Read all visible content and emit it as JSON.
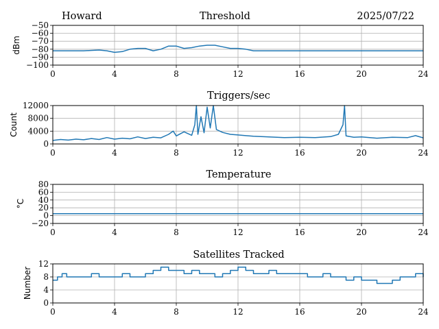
{
  "header": {
    "station": "Howard",
    "date": "2025/07/22"
  },
  "colors": {
    "series": "#1f77b4",
    "grid": "#b0b0b0",
    "axes": "#000000"
  },
  "chart_data": [
    {
      "type": "line",
      "title": "Threshold",
      "ylabel": "dBm",
      "xlim": [
        0,
        24
      ],
      "ylim": [
        -100,
        -50
      ],
      "xticks": [
        0,
        4,
        8,
        12,
        16,
        20,
        24
      ],
      "yticks": [
        -100,
        -90,
        -80,
        -70,
        -60,
        -50
      ],
      "ytick_labels": [
        "−100",
        "−90",
        "−80",
        "−70",
        "−60",
        "−50"
      ],
      "grid": true,
      "series": [
        {
          "x": [
            0,
            1,
            2,
            3,
            3.5,
            4,
            4.5,
            5,
            5.5,
            6,
            6.5,
            7,
            7.5,
            8,
            8.5,
            9,
            9.5,
            10,
            10.5,
            11,
            11.5,
            12,
            12.5,
            13,
            14,
            16,
            18,
            20,
            22,
            24
          ],
          "values": [
            -82,
            -82,
            -82,
            -81,
            -82,
            -84,
            -83,
            -80,
            -79,
            -79,
            -82,
            -80,
            -76,
            -76,
            -79,
            -78,
            -76,
            -75,
            -75,
            -77,
            -79,
            -79,
            -80,
            -82,
            -82,
            -82,
            -82,
            -82,
            -82,
            -82
          ]
        }
      ]
    },
    {
      "type": "line",
      "title": "Triggers/sec",
      "ylabel": "Count",
      "xlim": [
        0,
        24
      ],
      "ylim": [
        0,
        12000
      ],
      "xticks": [
        0,
        4,
        8,
        12,
        16,
        20,
        24
      ],
      "yticks": [
        0,
        4000,
        8000,
        12000
      ],
      "ytick_labels": [
        "0",
        "4000",
        "8000",
        "12000"
      ],
      "grid": true,
      "series": [
        {
          "x": [
            0,
            0.5,
            1,
            1.5,
            2,
            2.5,
            3,
            3.5,
            4,
            4.5,
            5,
            5.5,
            6,
            6.5,
            7,
            7.5,
            7.8,
            8,
            8.5,
            9,
            9.2,
            9.3,
            9.4,
            9.6,
            9.8,
            10,
            10.2,
            10.4,
            10.6,
            11,
            11.5,
            12,
            12.5,
            13,
            13.5,
            14,
            15,
            16,
            17,
            18,
            18.5,
            18.8,
            18.9,
            19,
            19.5,
            20,
            21,
            22,
            23,
            23.5,
            24
          ],
          "values": [
            1100,
            1400,
            1200,
            1500,
            1300,
            1700,
            1400,
            2000,
            1500,
            1800,
            1600,
            2200,
            1700,
            2100,
            1900,
            3000,
            4000,
            2500,
            3800,
            2700,
            6000,
            12000,
            3000,
            8500,
            3500,
            11500,
            5000,
            12000,
            4500,
            3600,
            3000,
            2800,
            2600,
            2400,
            2300,
            2200,
            2000,
            2100,
            2000,
            2300,
            3000,
            6000,
            12000,
            2500,
            2100,
            2200,
            1800,
            2100,
            2000,
            2600,
            1900
          ]
        }
      ]
    },
    {
      "type": "line",
      "title": "Temperature",
      "ylabel": "°C",
      "xlim": [
        0,
        24
      ],
      "ylim": [
        -20,
        80
      ],
      "xticks": [
        0,
        4,
        8,
        12,
        16,
        20,
        24
      ],
      "yticks": [
        -20,
        0,
        20,
        40,
        60,
        80
      ],
      "ytick_labels": [
        "−20",
        "0",
        "20",
        "40",
        "60",
        "80"
      ],
      "grid": true,
      "series": [
        {
          "x": [
            0,
            24
          ],
          "values": [
            5,
            5
          ]
        }
      ]
    },
    {
      "type": "line",
      "title": "Satellites Tracked",
      "ylabel": "Number",
      "xlim": [
        0,
        24
      ],
      "ylim": [
        0,
        12
      ],
      "xticks": [
        0,
        4,
        8,
        12,
        16,
        20,
        24
      ],
      "yticks": [
        0,
        4,
        8,
        12
      ],
      "ytick_labels": [
        "0",
        "4",
        "8",
        "12"
      ],
      "grid": true,
      "series": [
        {
          "step": true,
          "x": [
            0,
            0.3,
            0.6,
            0.9,
            1.2,
            2,
            2.5,
            3,
            3.5,
            4,
            4.5,
            5,
            5.5,
            6,
            6.5,
            7,
            7.5,
            8,
            8.5,
            9,
            9.5,
            10,
            10.5,
            11,
            11.5,
            12,
            12.5,
            13,
            13.5,
            14,
            14.5,
            15,
            15.5,
            16,
            16.5,
            17,
            17.5,
            18,
            18.5,
            19,
            19.5,
            20,
            20.5,
            21,
            21.5,
            22,
            22.5,
            23,
            23.5,
            24
          ],
          "values": [
            7,
            8,
            9,
            8,
            8,
            8,
            9,
            8,
            8,
            8,
            9,
            8,
            8,
            9,
            10,
            11,
            10,
            10,
            9,
            10,
            9,
            9,
            8,
            9,
            10,
            11,
            10,
            9,
            9,
            10,
            9,
            9,
            9,
            9,
            8,
            8,
            9,
            8,
            8,
            7,
            8,
            7,
            7,
            6,
            6,
            7,
            8,
            8,
            9,
            8
          ]
        }
      ]
    }
  ]
}
